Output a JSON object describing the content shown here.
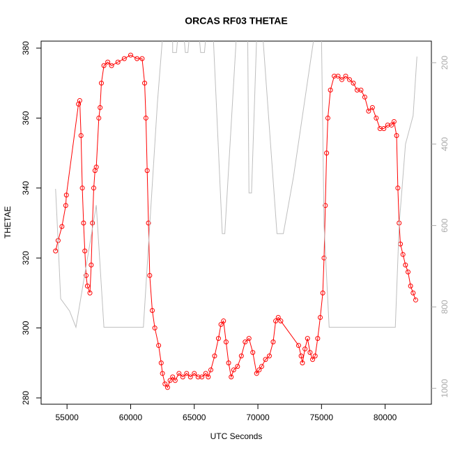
{
  "chart_data": {
    "type": "scatter",
    "title": "ORCAS RF03 THETAE",
    "x_label": "UTC Seconds",
    "y_label": "THETAE",
    "xlim": [
      52964,
      83636
    ],
    "ylim": [
      278.2,
      382.0
    ],
    "y2lim": [
      1039,
      147
    ],
    "xticks": [
      55000,
      60000,
      65000,
      70000,
      75000,
      80000
    ],
    "yticks": [
      280,
      300,
      320,
      340,
      360,
      380
    ],
    "y2ticks": [
      200,
      400,
      600,
      800,
      1000
    ],
    "series": [
      {
        "color": "#ff0000",
        "marker": "circle",
        "x": [
          54100,
          54300,
          54600,
          54900,
          54950,
          55900,
          56000,
          56100,
          56200,
          56300,
          56400,
          56500,
          56600,
          56800,
          56900,
          57000,
          57100,
          57200,
          57300,
          57500,
          57600,
          57700,
          57900,
          58200,
          58500,
          59000,
          59500,
          60000,
          60500,
          60900,
          61100,
          61200,
          61300,
          61400,
          61500,
          61700,
          61900,
          62200,
          62400,
          62500,
          62700,
          62900,
          63100,
          63300,
          63500,
          63800,
          64100,
          64400,
          64700,
          65000,
          65300,
          65600,
          65900,
          66100,
          66300,
          66600,
          66900,
          67100,
          67300,
          67500,
          67700,
          67900,
          68100,
          68400,
          68700,
          69000,
          69300,
          69600,
          69900,
          70100,
          70300,
          70600,
          70900,
          71200,
          71400,
          71600,
          71800,
          73200,
          73400,
          73500,
          73700,
          73900,
          74100,
          74300,
          74500,
          74700,
          74900,
          75100,
          75200,
          75300,
          75400,
          75500,
          75700,
          76000,
          76300,
          76600,
          76900,
          77200,
          77500,
          77800,
          78100,
          78400,
          78700,
          79000,
          79300,
          79600,
          79900,
          80200,
          80500,
          80700,
          80900,
          81000,
          81100,
          81200,
          81400,
          81600,
          81800,
          82000,
          82200,
          82400
        ],
        "values": [
          322,
          325,
          329,
          335,
          338,
          364,
          365,
          355,
          340,
          330,
          322,
          315,
          312,
          310,
          318,
          330,
          340,
          345,
          346,
          360,
          363,
          370,
          375,
          376,
          375,
          376,
          377,
          378,
          377,
          377,
          370,
          360,
          345,
          330,
          315,
          305,
          300,
          295,
          290,
          287,
          284,
          283,
          285,
          286,
          285,
          287,
          286,
          287,
          286,
          287,
          286,
          286,
          287,
          286,
          288,
          292,
          297,
          301,
          302,
          296,
          290,
          286,
          288,
          289,
          292,
          296,
          297,
          293,
          287,
          288,
          289,
          291,
          292,
          296,
          302,
          303,
          302,
          295,
          292,
          290,
          294,
          297,
          293,
          291,
          292,
          297,
          303,
          310,
          320,
          335,
          350,
          360,
          368,
          372,
          372,
          371,
          372,
          371,
          370,
          368,
          368,
          366,
          362,
          363,
          360,
          357,
          357,
          358,
          358,
          359,
          355,
          340,
          330,
          324,
          321,
          318,
          316,
          312,
          310,
          308
        ]
      },
      {
        "color": "#bebebe",
        "axis": "y2",
        "x": [
          54100,
          54300,
          54500,
          55200,
          55700,
          57300,
          57900,
          61000,
          61500,
          62100,
          62500,
          63300,
          63300,
          63600,
          63700,
          64200,
          64300,
          64500,
          64600,
          65400,
          65500,
          65800,
          65900,
          66500,
          67200,
          67400,
          68300,
          69200,
          69300,
          69500,
          69900,
          70400,
          71500,
          72000,
          72800,
          74400,
          75000,
          75200,
          75600,
          80800,
          81100,
          81600,
          82200,
          82500
        ],
        "values": [
          510,
          640,
          780,
          810,
          850,
          550,
          850,
          850,
          600,
          300,
          140,
          140,
          175,
          175,
          140,
          140,
          175,
          175,
          140,
          140,
          175,
          175,
          140,
          140,
          620,
          620,
          140,
          140,
          520,
          520,
          140,
          140,
          620,
          620,
          480,
          140,
          140,
          600,
          850,
          850,
          600,
          400,
          330,
          185
        ]
      }
    ]
  }
}
